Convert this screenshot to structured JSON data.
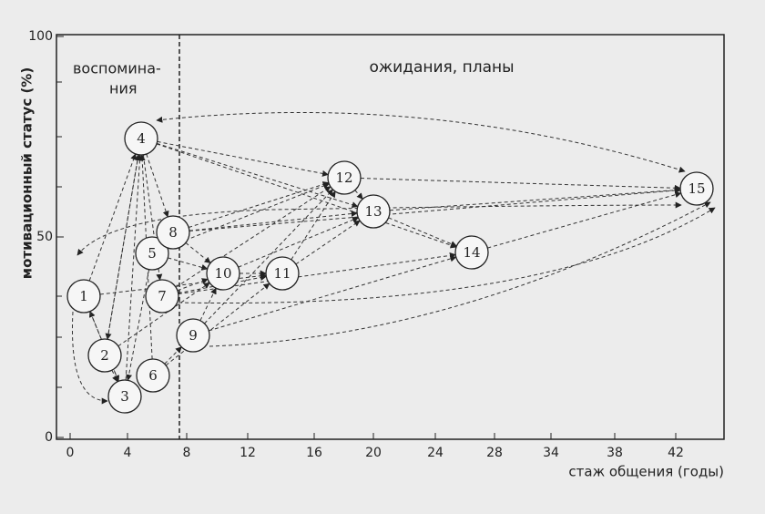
{
  "axes": {
    "y_label": "мотивационный статус (%)",
    "x_label": "стаж общения (годы)",
    "y_ticks": [
      "0",
      "50",
      "100"
    ],
    "x_ticks": [
      "0",
      "4",
      "8",
      "12",
      "16",
      "20",
      "24",
      "28",
      "34",
      "38",
      "42"
    ]
  },
  "regions": {
    "memories": [
      "воспомина-",
      "ния"
    ],
    "expectations": "ожидания, планы"
  },
  "nodes": [
    "1",
    "2",
    "3",
    "4",
    "5",
    "6",
    "7",
    "8",
    "9",
    "10",
    "11",
    "12",
    "13",
    "14",
    "15"
  ]
}
